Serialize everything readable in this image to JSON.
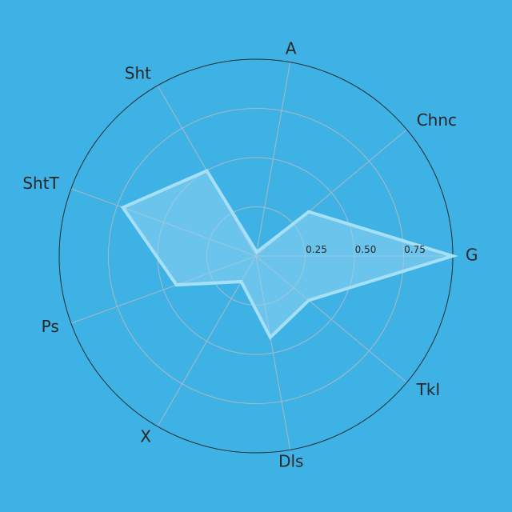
{
  "colors": {
    "background": "#3eb2e5",
    "grid": "#a9b9c4",
    "outer_circle": "#1f2b33",
    "fill": "#8fd4f2",
    "stroke": "#a6e0f7",
    "text": "#262626"
  },
  "chart_data": {
    "type": "radar",
    "axes": [
      "G",
      "Chnc",
      "A",
      "Sht",
      "ShtT",
      "Ps",
      "X",
      "Dls",
      "Tkl"
    ],
    "values": [
      1.0,
      0.35,
      0.02,
      0.5,
      0.72,
      0.43,
      0.15,
      0.42,
      0.35
    ],
    "rlim": [
      0,
      1
    ],
    "rticks": [
      0.25,
      0.5,
      0.75
    ],
    "rtick_labels": [
      "0.25",
      "0.50",
      "0.75"
    ],
    "grid": true,
    "legend": "none"
  }
}
